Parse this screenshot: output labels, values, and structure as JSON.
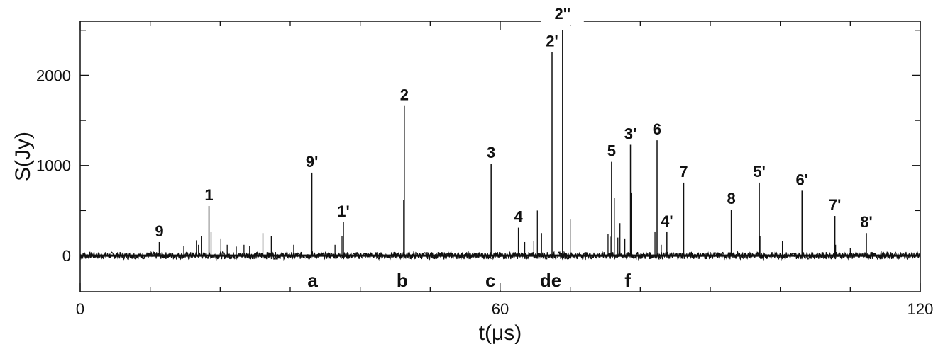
{
  "chart_data": {
    "type": "line",
    "xlabel": "t(μs)",
    "ylabel": "S(Jy)",
    "xlim": [
      0,
      120
    ],
    "ylim": [
      -400,
      2600
    ],
    "x_ticks": [
      0,
      60,
      120
    ],
    "y_ticks": [
      0,
      1000,
      2000
    ],
    "grid": false,
    "noise_level": 40,
    "baseline": 0,
    "peaks": [
      {
        "label": "9",
        "t": 11.3,
        "value": 150
      },
      {
        "label": "1",
        "t": 18.4,
        "value": 550
      },
      {
        "label": "9'",
        "t": 33.1,
        "value": 920
      },
      {
        "label": "1'",
        "t": 37.6,
        "value": 370
      },
      {
        "label": "2",
        "t": 46.3,
        "value": 1660
      },
      {
        "label": "3",
        "t": 58.7,
        "value": 1020
      },
      {
        "label": "4",
        "t": 62.6,
        "value": 310
      },
      {
        "label": "2'",
        "t": 67.4,
        "value": 2260
      },
      {
        "label": "2''",
        "t": 68.9,
        "value": 2500
      },
      {
        "label": "5",
        "t": 75.9,
        "value": 1040
      },
      {
        "label": "3'",
        "t": 78.6,
        "value": 1230
      },
      {
        "label": "6",
        "t": 82.4,
        "value": 1280
      },
      {
        "label": "4'",
        "t": 83.8,
        "value": 260
      },
      {
        "label": "7",
        "t": 86.2,
        "value": 810
      },
      {
        "label": "8",
        "t": 93.0,
        "value": 510
      },
      {
        "label": "5'",
        "t": 97.0,
        "value": 810
      },
      {
        "label": "6'",
        "t": 103.1,
        "value": 720
      },
      {
        "label": "7'",
        "t": 107.8,
        "value": 440
      },
      {
        "label": "8'",
        "t": 112.3,
        "value": 250
      }
    ],
    "minor_spikes": [
      {
        "t": 14.8,
        "value": 110
      },
      {
        "t": 16.6,
        "value": 170
      },
      {
        "t": 16.9,
        "value": 120
      },
      {
        "t": 17.3,
        "value": 220
      },
      {
        "t": 18.7,
        "value": 260
      },
      {
        "t": 20.1,
        "value": 190
      },
      {
        "t": 21.0,
        "value": 120
      },
      {
        "t": 22.3,
        "value": 100
      },
      {
        "t": 23.4,
        "value": 120
      },
      {
        "t": 24.2,
        "value": 110
      },
      {
        "t": 26.1,
        "value": 250
      },
      {
        "t": 27.3,
        "value": 220
      },
      {
        "t": 30.5,
        "value": 120
      },
      {
        "t": 33.0,
        "value": 620
      },
      {
        "t": 36.4,
        "value": 120
      },
      {
        "t": 37.4,
        "value": 220
      },
      {
        "t": 46.2,
        "value": 620
      },
      {
        "t": 63.5,
        "value": 150
      },
      {
        "t": 64.8,
        "value": 160
      },
      {
        "t": 65.3,
        "value": 500
      },
      {
        "t": 65.9,
        "value": 250
      },
      {
        "t": 70.0,
        "value": 400
      },
      {
        "t": 75.4,
        "value": 240
      },
      {
        "t": 75.7,
        "value": 210
      },
      {
        "t": 76.3,
        "value": 640
      },
      {
        "t": 76.8,
        "value": 200
      },
      {
        "t": 77.1,
        "value": 360
      },
      {
        "t": 77.8,
        "value": 190
      },
      {
        "t": 78.7,
        "value": 700
      },
      {
        "t": 82.1,
        "value": 260
      },
      {
        "t": 83.0,
        "value": 120
      },
      {
        "t": 97.1,
        "value": 220
      },
      {
        "t": 100.3,
        "value": 160
      },
      {
        "t": 103.2,
        "value": 400
      },
      {
        "t": 107.9,
        "value": 120
      },
      {
        "t": 110.0,
        "value": 80
      }
    ],
    "regions": [
      {
        "label": "a",
        "t": 33.2
      },
      {
        "label": "b",
        "t": 46.0
      },
      {
        "label": "c",
        "t": 58.6
      },
      {
        "label": "de",
        "t": 67.2
      },
      {
        "label": "f",
        "t": 78.2
      }
    ]
  }
}
